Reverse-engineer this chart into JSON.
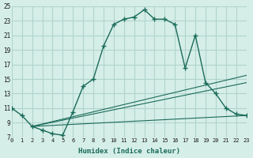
{
  "xlabel": "Humidex (Indice chaleur)",
  "bg_color": "#d6eee8",
  "grid_color": "#b0d4cc",
  "line_color": "#1a6b5a",
  "xlim": [
    0,
    23
  ],
  "ylim": [
    7,
    25
  ],
  "xticks": [
    0,
    1,
    2,
    3,
    4,
    5,
    6,
    7,
    8,
    9,
    10,
    11,
    12,
    13,
    14,
    15,
    16,
    17,
    18,
    19,
    20,
    21,
    22,
    23
  ],
  "yticks": [
    7,
    9,
    11,
    13,
    15,
    17,
    19,
    21,
    23,
    25
  ],
  "main_x": [
    0,
    1,
    2,
    3,
    4,
    5,
    6,
    7,
    8,
    9,
    10,
    11,
    12,
    13,
    14,
    15,
    16,
    17,
    18,
    19,
    20,
    21,
    22,
    23
  ],
  "main_y": [
    11,
    10,
    8.5,
    8,
    7.5,
    7.3,
    10.5,
    14,
    15,
    19.5,
    22.5,
    23.2,
    23.5,
    24.5,
    23.2,
    23.2,
    22.5,
    16.5,
    21,
    14.5,
    13,
    11,
    10.2,
    10
  ],
  "line2_x": [
    2,
    23
  ],
  "line2_y": [
    8.5,
    10
  ],
  "line3_x": [
    2,
    23
  ],
  "line3_y": [
    8.5,
    14.5
  ],
  "line4_x": [
    2,
    23
  ],
  "line4_y": [
    8.5,
    15.5
  ]
}
